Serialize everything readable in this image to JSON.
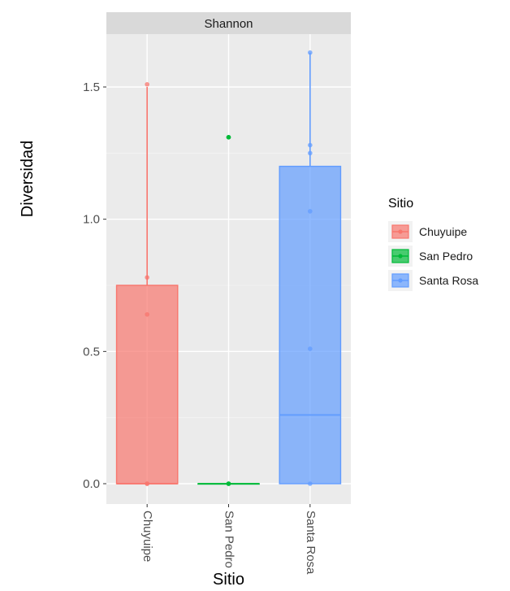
{
  "chart_data": {
    "type": "box",
    "facet_label": "Shannon",
    "xlabel": "Sitio",
    "ylabel": "Diversidad",
    "ylim": [
      -0.1,
      1.72
    ],
    "y_ticks": [
      0.0,
      0.5,
      1.0,
      1.5
    ],
    "y_tick_labels": [
      "0.0",
      "0.5",
      "1.0",
      "1.5"
    ],
    "categories": [
      "Chuyuipe",
      "San Pedro",
      "Santa Rosa"
    ],
    "legend": {
      "title": "Sitio",
      "position": "right"
    },
    "grid": true,
    "series": [
      {
        "name": "Chuyuipe",
        "color": "#F8766D",
        "box": {
          "min": 0.0,
          "q1": 0.0,
          "median": 0.0,
          "q3": 0.75,
          "max": 1.5
        },
        "points": [
          0.0,
          0.0,
          0.64,
          0.78,
          1.51
        ]
      },
      {
        "name": "San Pedro",
        "color": "#00BA38",
        "box": {
          "min": 0.0,
          "q1": 0.0,
          "median": 0.0,
          "q3": 0.0,
          "max": 0.0
        },
        "outliers": [
          1.31
        ],
        "points": [
          0.0,
          0.0,
          0.0,
          1.31
        ]
      },
      {
        "name": "Santa Rosa",
        "color": "#619CFF",
        "box": {
          "min": 0.0,
          "q1": 0.0,
          "median": 0.26,
          "q3": 1.2,
          "max": 1.63
        },
        "points": [
          0.0,
          0.51,
          1.03,
          1.25,
          1.28,
          1.63
        ]
      }
    ]
  }
}
